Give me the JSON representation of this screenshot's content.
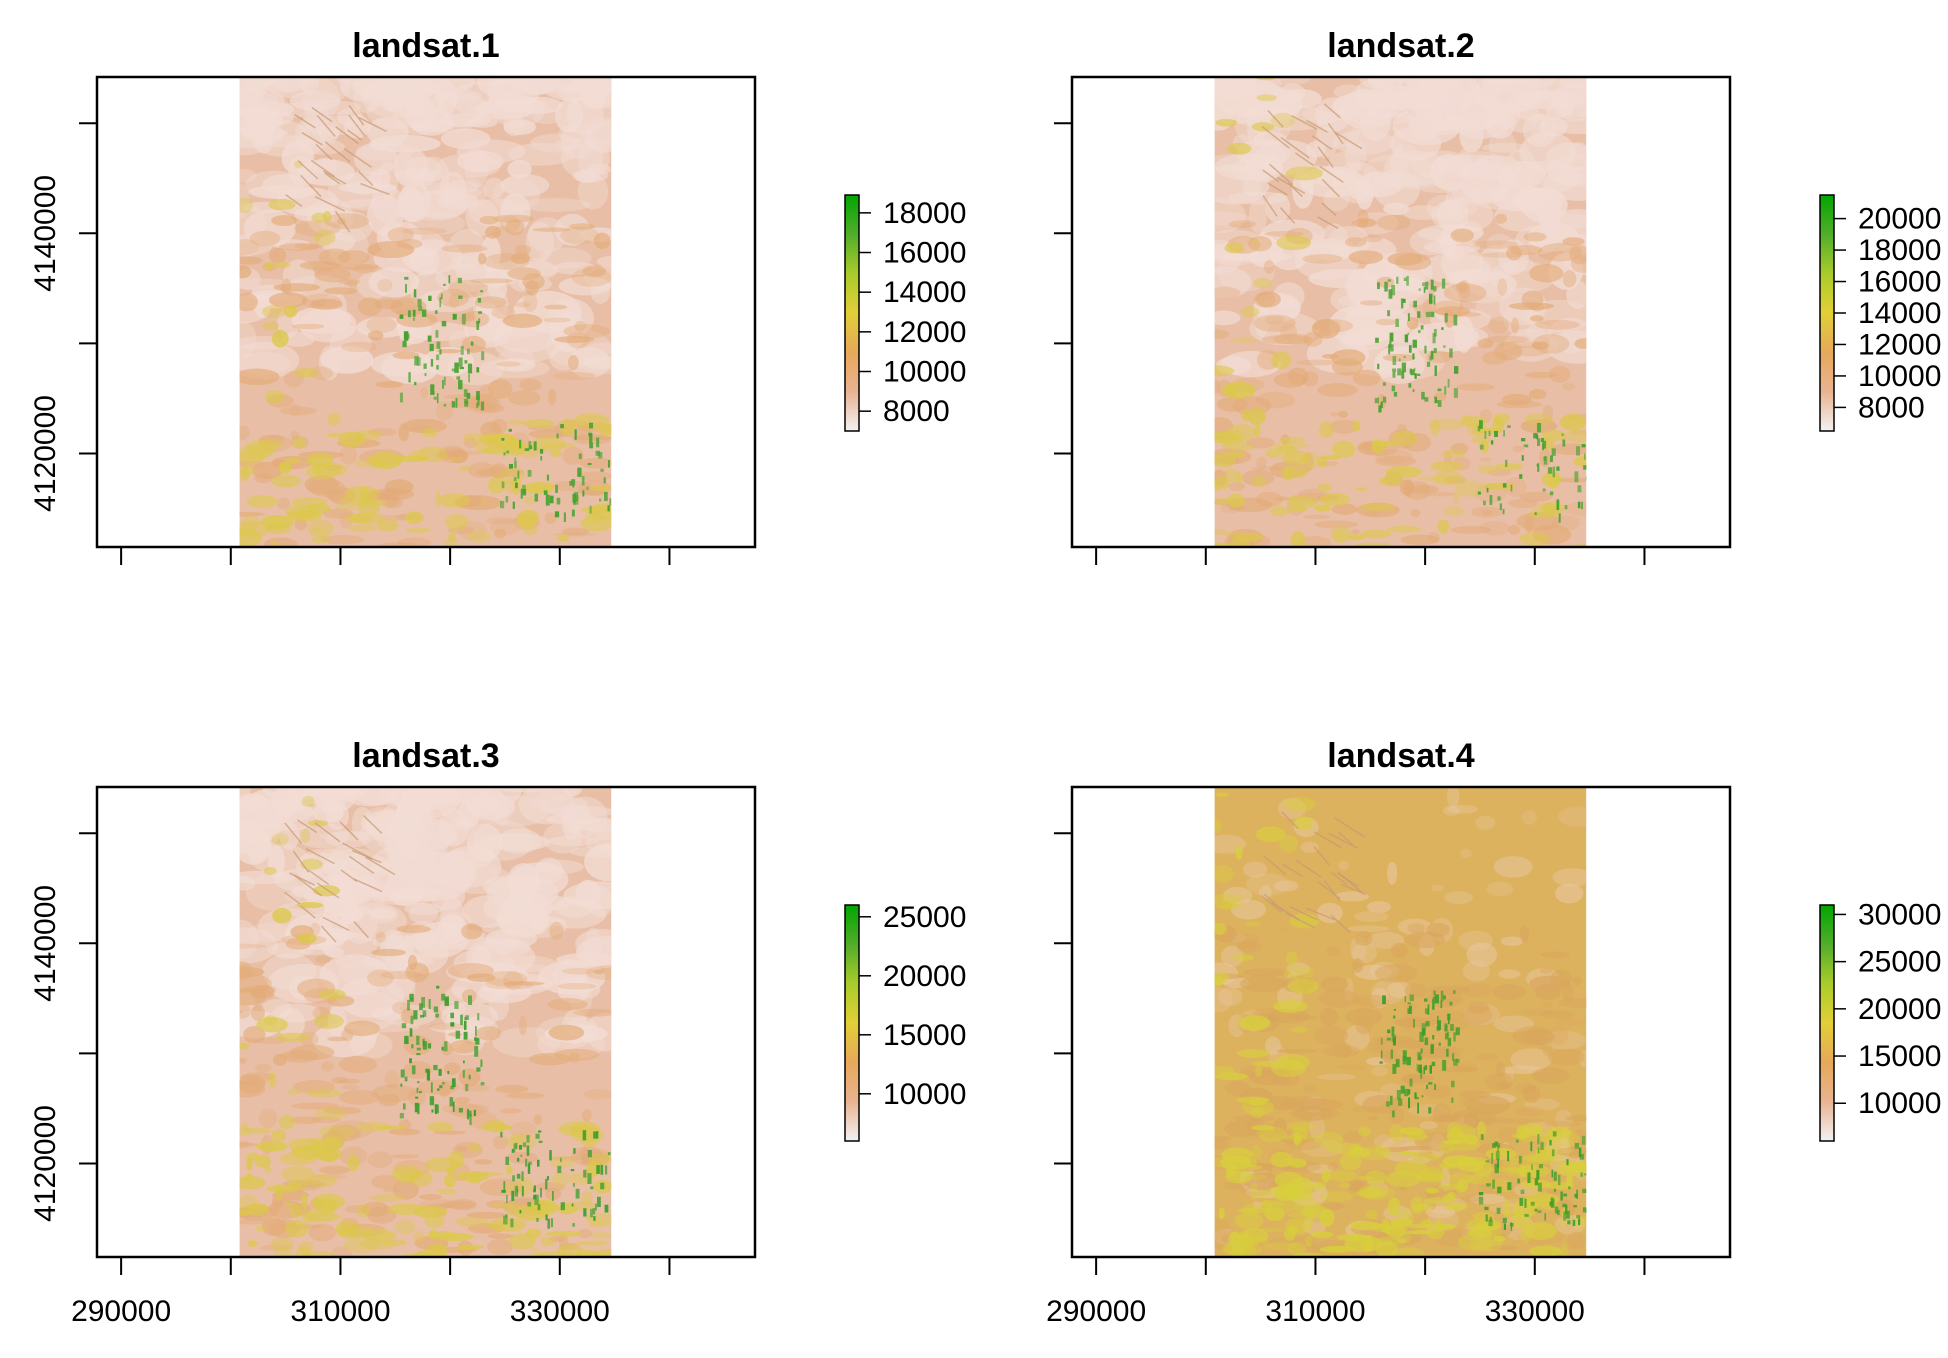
{
  "chart_data": [
    {
      "type": "heatmap",
      "title": "landsat.1",
      "xlim": [
        287800,
        347800
      ],
      "ylim": [
        4111500,
        4154200
      ],
      "raster_extent": {
        "x": [
          300800,
          334700
        ],
        "y": [
          4111500,
          4154200
        ]
      },
      "x_ticks": [
        290000,
        300000,
        310000,
        320000,
        330000,
        340000
      ],
      "x_tick_labels": [],
      "y_ticks": [
        4110000,
        4120000,
        4130000,
        4140000,
        4150000
      ],
      "y_tick_labels": [
        "4120000",
        "4140000"
      ],
      "legend": {
        "min": 7000,
        "max": 18900,
        "ticks": [
          8000,
          10000,
          12000,
          14000,
          16000,
          18000
        ],
        "tick_labels": [
          "8000",
          "10000",
          "12000",
          "14000",
          "16000",
          "18000"
        ],
        "colors": [
          "#F2F2F2",
          "#EAB391",
          "#E6A85A",
          "#E2CF36",
          "#A9CC2A",
          "#52AD2A",
          "#00A600"
        ]
      },
      "image": {
        "base": "#E8BFA6",
        "light": "#F2DCD4",
        "orange": "#E3AB78",
        "yellow": "#DCC84A",
        "green": "#47A230",
        "light_top": 0.62,
        "green_amount": 0.9,
        "yellow_amount": 0.8
      }
    },
    {
      "type": "heatmap",
      "title": "landsat.2",
      "xlim": [
        287800,
        347800
      ],
      "ylim": [
        4111500,
        4154200
      ],
      "raster_extent": {
        "x": [
          300800,
          334700
        ],
        "y": [
          4111500,
          4154200
        ]
      },
      "x_ticks": [
        290000,
        300000,
        310000,
        320000,
        330000,
        340000
      ],
      "x_tick_labels": [],
      "y_ticks": [
        4110000,
        4120000,
        4130000,
        4140000,
        4150000
      ],
      "y_tick_labels": [],
      "legend": {
        "min": 6500,
        "max": 21500,
        "ticks": [
          8000,
          10000,
          12000,
          14000,
          16000,
          18000,
          20000
        ],
        "tick_labels": [
          "8000",
          "10000",
          "12000",
          "14000",
          "16000",
          "18000",
          "20000"
        ],
        "colors": [
          "#F2F2F2",
          "#EAB391",
          "#E6A85A",
          "#E2CF36",
          "#A9CC2A",
          "#52AD2A",
          "#00A600"
        ]
      },
      "image": {
        "base": "#E8BFA6",
        "light": "#F2DCD4",
        "orange": "#E3AB78",
        "yellow": "#DCC84A",
        "green": "#47A230",
        "light_top": 0.62,
        "green_amount": 0.9,
        "yellow_amount": 0.8
      }
    },
    {
      "type": "heatmap",
      "title": "landsat.3",
      "xlim": [
        287800,
        347800
      ],
      "ylim": [
        4111500,
        4154200
      ],
      "raster_extent": {
        "x": [
          300800,
          334700
        ],
        "y": [
          4111500,
          4154200
        ]
      },
      "x_ticks": [
        290000,
        300000,
        310000,
        320000,
        330000,
        340000
      ],
      "x_tick_labels": [
        "290000",
        "",
        "310000",
        "",
        "330000",
        ""
      ],
      "y_ticks": [
        4110000,
        4120000,
        4130000,
        4140000,
        4150000
      ],
      "y_tick_labels": [
        "4120000",
        "4140000"
      ],
      "legend": {
        "min": 6000,
        "max": 26000,
        "ticks": [
          10000,
          15000,
          20000,
          25000
        ],
        "tick_labels": [
          "10000",
          "15000",
          "20000",
          "25000"
        ],
        "colors": [
          "#F2F2F2",
          "#EAB391",
          "#E6A85A",
          "#E2CF36",
          "#A9CC2A",
          "#52AD2A",
          "#00A600"
        ]
      },
      "image": {
        "base": "#E8BFA6",
        "light": "#F2DCD4",
        "orange": "#E3AB78",
        "yellow": "#DCC84A",
        "green": "#3A9E2C",
        "light_top": 0.55,
        "green_amount": 1.0,
        "yellow_amount": 1.1
      }
    },
    {
      "type": "heatmap",
      "title": "landsat.4",
      "xlim": [
        287800,
        347800
      ],
      "ylim": [
        4111500,
        4154200
      ],
      "raster_extent": {
        "x": [
          300800,
          334700
        ],
        "y": [
          4111500,
          4154200
        ]
      },
      "x_ticks": [
        290000,
        300000,
        310000,
        320000,
        330000,
        340000
      ],
      "x_tick_labels": [
        "290000",
        "",
        "310000",
        "",
        "330000",
        ""
      ],
      "y_ticks": [
        4110000,
        4120000,
        4130000,
        4140000,
        4150000
      ],
      "y_tick_labels": [],
      "legend": {
        "min": 6000,
        "max": 31000,
        "ticks": [
          10000,
          15000,
          20000,
          25000,
          30000
        ],
        "tick_labels": [
          "10000",
          "15000",
          "20000",
          "25000",
          "30000"
        ],
        "colors": [
          "#F2F2F2",
          "#EAB391",
          "#E6A85A",
          "#E2CF36",
          "#A9CC2A",
          "#52AD2A",
          "#00A600"
        ]
      },
      "image": {
        "base": "#DDB25F",
        "light": "#E9C9A8",
        "orange": "#D9A65C",
        "yellow": "#D8CF3C",
        "green": "#3E9E2A",
        "light_top": 0.0,
        "green_amount": 1.1,
        "yellow_amount": 1.6
      }
    }
  ]
}
